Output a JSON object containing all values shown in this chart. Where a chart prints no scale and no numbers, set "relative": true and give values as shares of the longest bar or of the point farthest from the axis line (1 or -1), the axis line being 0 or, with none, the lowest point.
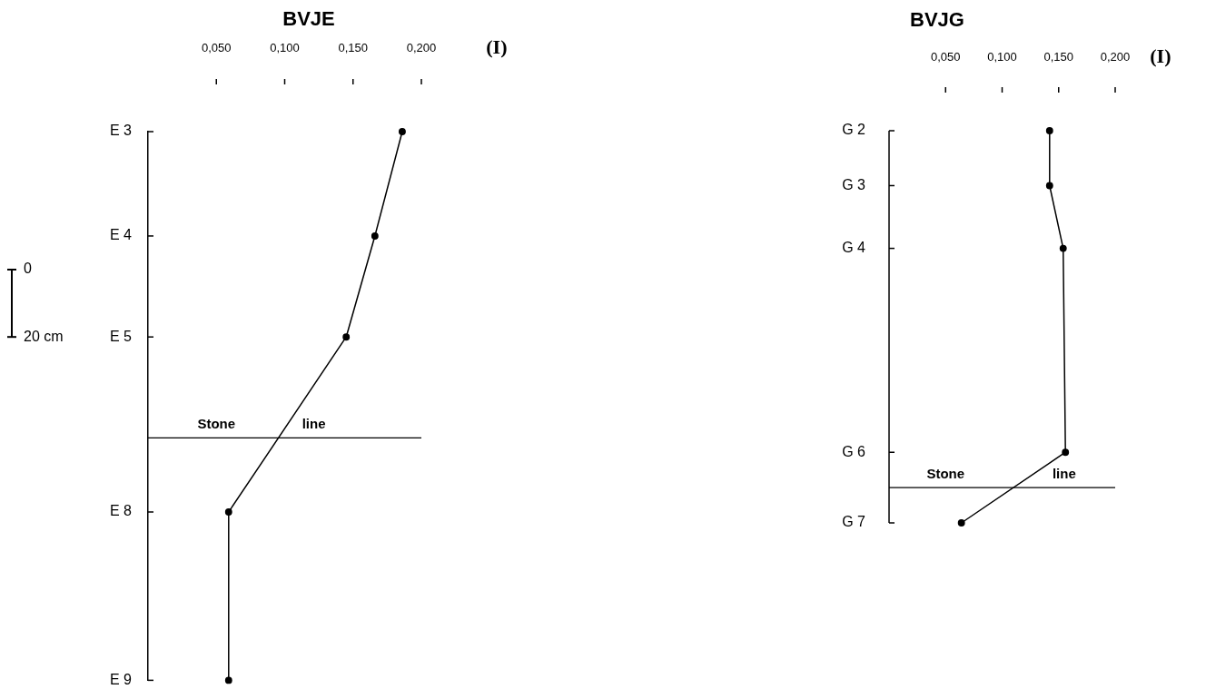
{
  "chart_data": [
    {
      "type": "line",
      "title": "BVJE",
      "xlabel": "(I)",
      "xlim": [
        0,
        0.2
      ],
      "xticks": [
        {
          "value": 0.05,
          "label": "0,050"
        },
        {
          "value": 0.1,
          "label": "0,100"
        },
        {
          "value": 0.15,
          "label": "0,150"
        },
        {
          "value": 0.2,
          "label": "0,200"
        }
      ],
      "ylim": [
        122,
        -41
      ],
      "yticks": [
        0,
        {
          "value": 20,
          "label": "20 cm"
        }
      ],
      "marker": "circle",
      "series": [
        {
          "color": "#000000",
          "x": [
            0.186,
            0.166,
            0.145,
            0.059,
            0.059
          ],
          "values": [
            -41,
            -10,
            20,
            72,
            122
          ]
        }
      ],
      "ref_lines": [
        {
          "axis": "y",
          "value": 50,
          "label": "Stone line",
          "color": "#000000"
        }
      ],
      "annotations": [
        "E 3",
        "E 4",
        "E 5",
        "E 8",
        "E 9"
      ]
    },
    {
      "type": "line",
      "title": "BVJG",
      "xlabel": "(I)",
      "xlim": [
        0,
        0.2
      ],
      "xticks": [
        {
          "value": 0.05,
          "label": "0,050"
        },
        {
          "value": 0.1,
          "label": "0,100"
        },
        {
          "value": 0.15,
          "label": "0,150"
        },
        {
          "value": 0.2,
          "label": "0,200"
        }
      ],
      "relative": true,
      "marker": "circle",
      "series": [
        {
          "color": "#000000",
          "x": [
            0.142,
            0.142,
            0.154,
            0.156,
            0.064
          ],
          "values": [
            1,
            0.86,
            0.7,
            0.18,
            0
          ]
        }
      ],
      "ref_lines": [
        {
          "axis": "y",
          "value": 0.09,
          "label": "Stone line",
          "color": "#000000"
        }
      ],
      "annotations": [
        "G 2",
        "G 3",
        "G 4",
        "G 6",
        "G 7"
      ]
    }
  ]
}
